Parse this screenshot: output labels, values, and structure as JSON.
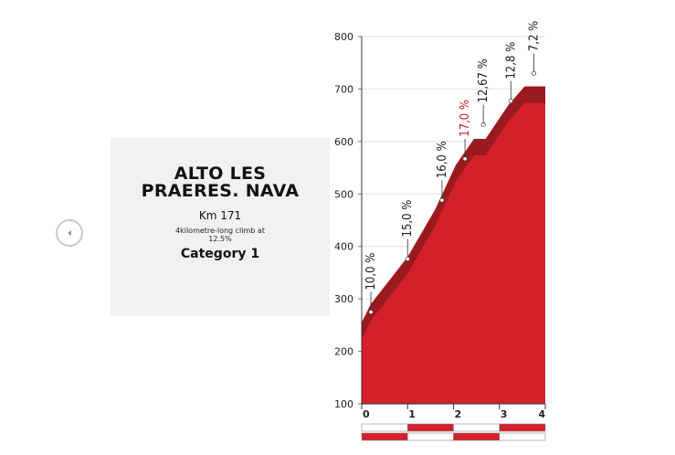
{
  "nav": {
    "prev_icon": "chevron-left-icon"
  },
  "climb": {
    "name": "ALTO LES PRAERES. NAVA",
    "km": "Km 171",
    "description": "4kilometre-long climb at 12.5%",
    "category": "Category 1"
  },
  "chart_data": {
    "type": "area",
    "title": "",
    "xlabel": "",
    "ylabel": "",
    "xlim": [
      0,
      4
    ],
    "ylim": [
      100,
      800
    ],
    "y_ticks": [
      100,
      200,
      300,
      400,
      500,
      600,
      700,
      800
    ],
    "x_ticks": [
      0,
      1,
      2,
      3,
      4
    ],
    "grid": true,
    "colors": {
      "fill": "#d4202a",
      "top_band": "#9a1b1f",
      "highlight_label": "#d4202a",
      "label": "#1a1a1a"
    },
    "profile": {
      "x": [
        0,
        0.2,
        1.0,
        1.6,
        2.05,
        2.45,
        2.7,
        3.2,
        3.55,
        4.0
      ],
      "y": [
        255,
        290,
        380,
        470,
        555,
        605,
        605,
        670,
        705,
        705
      ]
    },
    "gradients": [
      {
        "label": "10,0 %",
        "x": 0.2,
        "y": 275,
        "value": 10.0,
        "highlight": false
      },
      {
        "label": "15,0 %",
        "x": 1.0,
        "y": 376,
        "value": 15.0,
        "highlight": false
      },
      {
        "label": "16,0 %",
        "x": 1.75,
        "y": 488,
        "value": 16.0,
        "highlight": false
      },
      {
        "label": "17,0 %",
        "x": 2.25,
        "y": 567,
        "value": 17.0,
        "highlight": true
      },
      {
        "label": "12,67 %",
        "x": 2.65,
        "y": 632,
        "value": 12.67,
        "highlight": false
      },
      {
        "label": "12,8 %",
        "x": 3.25,
        "y": 677,
        "value": 12.8,
        "highlight": false
      },
      {
        "label": "7,2 %",
        "x": 3.75,
        "y": 730,
        "value": 7.2,
        "highlight": false
      }
    ]
  }
}
